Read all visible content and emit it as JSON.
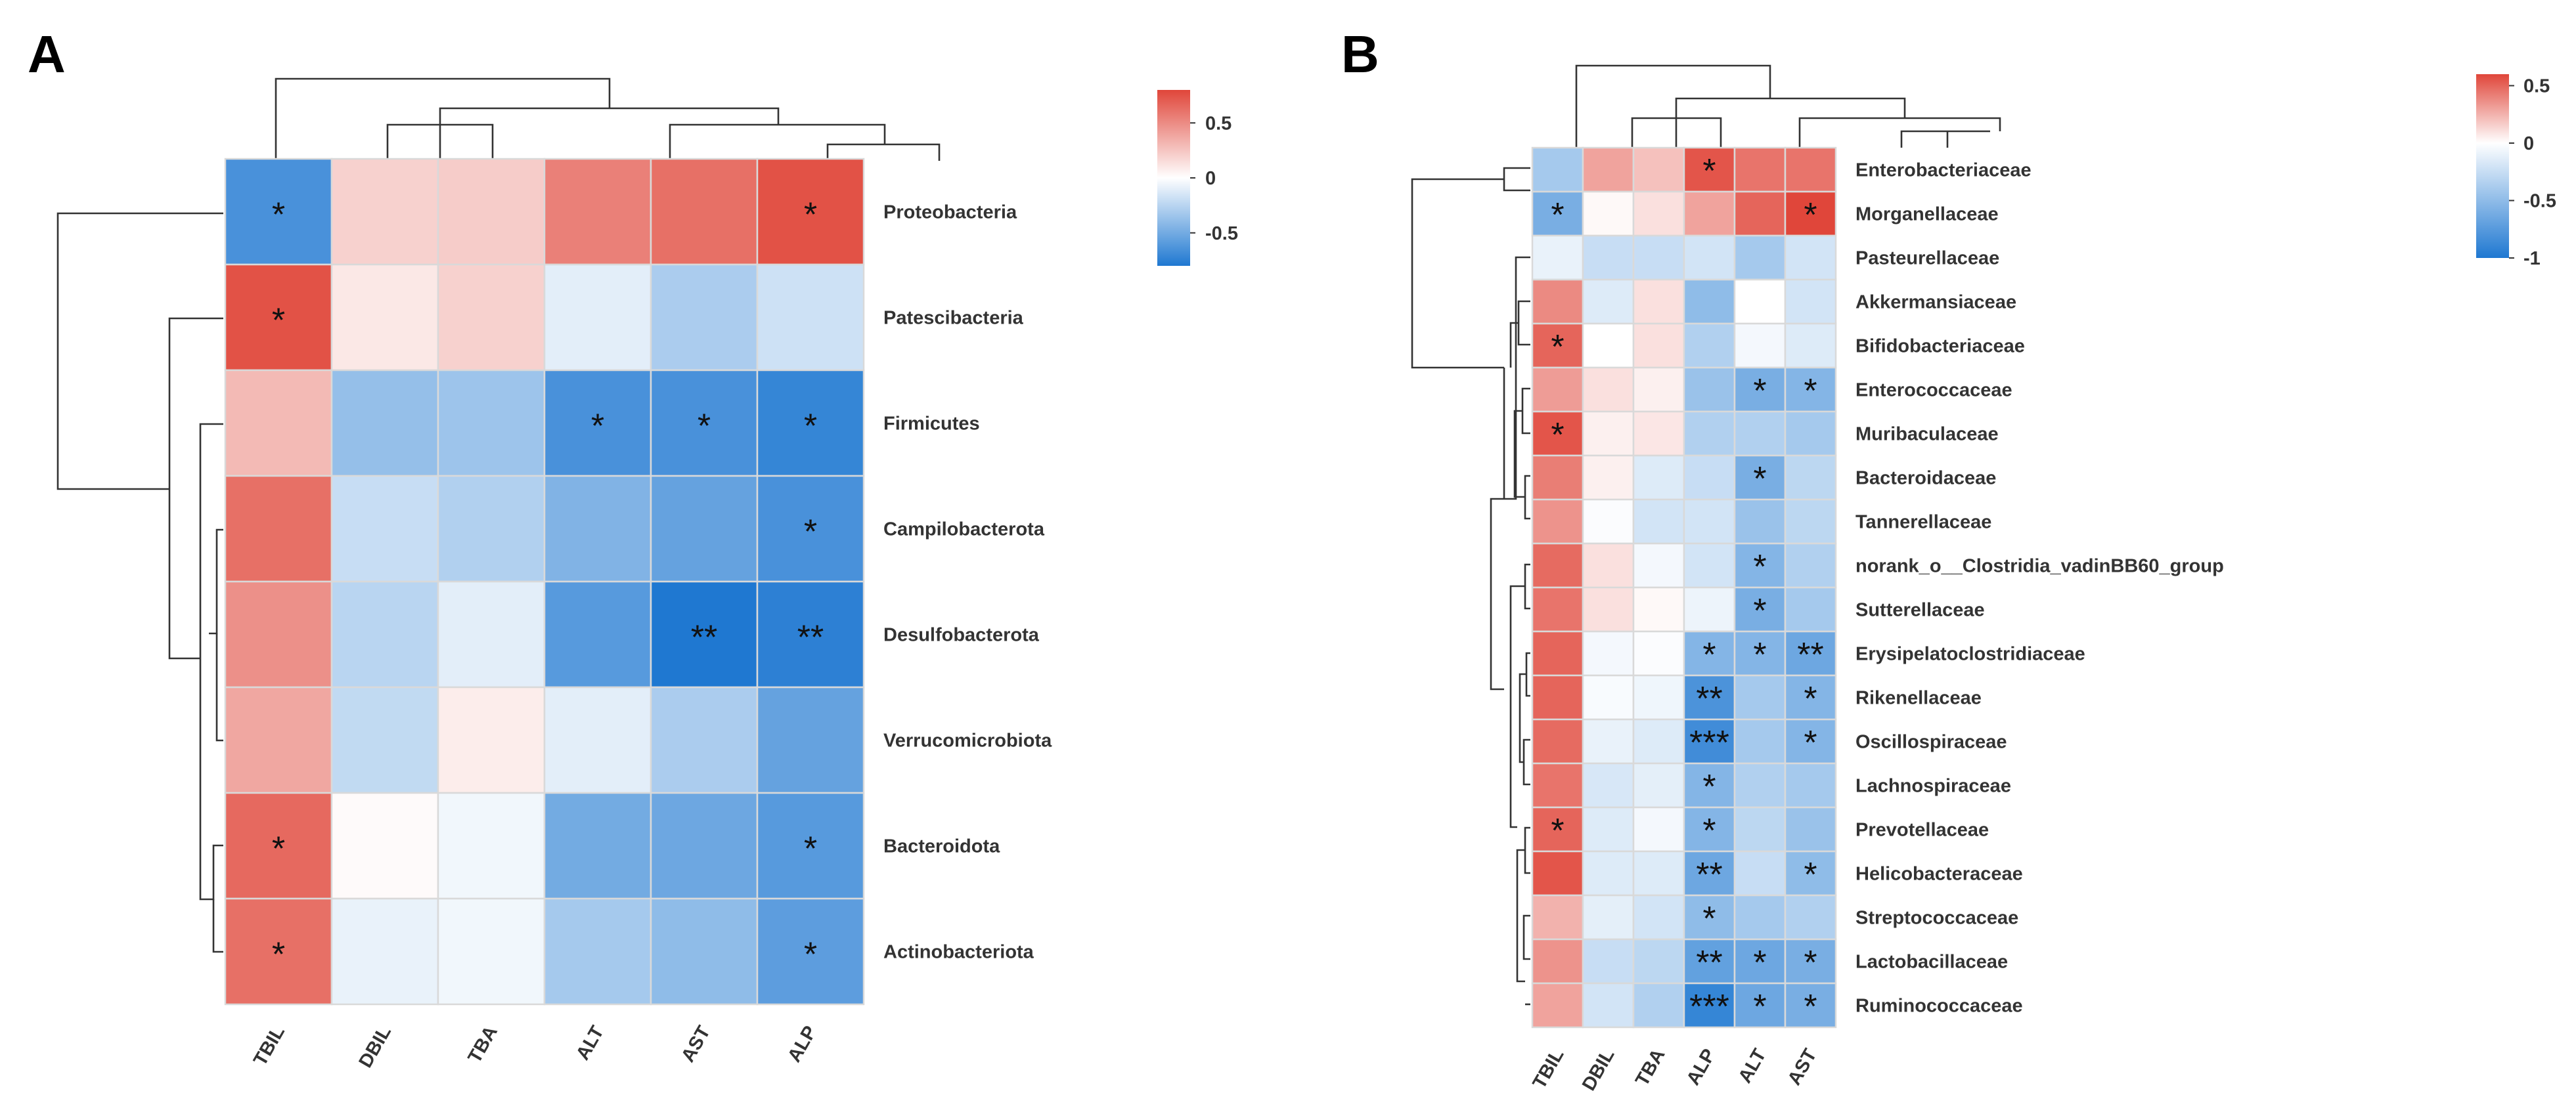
{
  "chart_data": [
    {
      "type": "heatmap",
      "panel_label": "A",
      "columns": [
        "TBIL",
        "DBIL",
        "TBA",
        "ALT",
        "AST",
        "ALP"
      ],
      "rows": [
        "Proteobacteria",
        "Patescibacteria",
        "Firmicutes",
        "Campilobacterota",
        "Desulfobacterota",
        "Verrucomicrobiota",
        "Bacteroidota",
        "Actinobacteriota"
      ],
      "values": [
        [
          -0.65,
          0.2,
          0.22,
          0.55,
          0.62,
          0.75
        ],
        [
          0.75,
          0.1,
          0.2,
          -0.1,
          -0.3,
          -0.18
        ],
        [
          0.3,
          -0.38,
          -0.35,
          -0.65,
          -0.65,
          -0.72
        ],
        [
          0.62,
          -0.2,
          -0.28,
          -0.45,
          -0.55,
          -0.65
        ],
        [
          0.48,
          -0.25,
          -0.1,
          -0.6,
          -0.8,
          -0.75
        ],
        [
          0.38,
          -0.22,
          0.08,
          -0.1,
          -0.3,
          -0.55
        ],
        [
          0.65,
          0.02,
          -0.05,
          -0.5,
          -0.52,
          -0.6
        ],
        [
          0.62,
          -0.08,
          -0.05,
          -0.32,
          -0.4,
          -0.58
        ]
      ],
      "significance": [
        [
          "*",
          "",
          "",
          "",
          "",
          "*"
        ],
        [
          "*",
          "",
          "",
          "",
          "",
          ""
        ],
        [
          "",
          "",
          "",
          "*",
          "*",
          "*"
        ],
        [
          "",
          "",
          "",
          "",
          "",
          "*"
        ],
        [
          "",
          "",
          "",
          "",
          "**",
          "**"
        ],
        [
          "",
          "",
          "",
          "",
          "",
          ""
        ],
        [
          "*",
          "",
          "",
          "",
          "",
          "*"
        ],
        [
          "*",
          "",
          "",
          "",
          "",
          "*"
        ]
      ],
      "colorbar": {
        "min": -0.8,
        "max": 0.8,
        "ticks": [
          0.5,
          0,
          -0.5
        ],
        "tick_labels": [
          "0.5",
          "0",
          "-0.5"
        ],
        "low_color": "#1f78d1",
        "mid_color": "#ffffff",
        "high_color": "#e0463a"
      }
    },
    {
      "type": "heatmap",
      "panel_label": "B",
      "columns": [
        "TBIL",
        "DBIL",
        "TBA",
        "ALP",
        "ALT",
        "AST"
      ],
      "rows": [
        "Enterobacteriaceae",
        "Morganellaceae",
        "Pasteurellaceae",
        "Akkermansiaceae",
        "Bifidobacteriaceae",
        "Enterococcaceae",
        "Muribaculaceae",
        "Bacteroidaceae",
        "Tannerellaceae",
        "norank_o__Clostridia_vadinBB60_group",
        "Sutterellaceae",
        "Erysipelatoclostridiaceae",
        "Rikenellaceae",
        "Oscillospiraceae",
        "Lachnospiraceae",
        "Prevotellaceae",
        "Helicobacteraceae",
        "Streptococcaceae",
        "Lactobacillaceae",
        "Ruminococcaceae"
      ],
      "values": [
        [
          -0.4,
          0.3,
          0.2,
          0.55,
          0.45,
          0.45
        ],
        [
          -0.6,
          0.02,
          0.1,
          0.3,
          0.5,
          0.6
        ],
        [
          -0.1,
          -0.25,
          -0.25,
          -0.2,
          -0.4,
          -0.2
        ],
        [
          0.38,
          -0.15,
          0.1,
          -0.5,
          0,
          -0.2
        ],
        [
          0.5,
          0,
          0.1,
          -0.35,
          -0.05,
          -0.15
        ],
        [
          0.32,
          0.1,
          0.05,
          -0.45,
          -0.6,
          -0.55
        ],
        [
          0.55,
          0.05,
          0.08,
          -0.35,
          -0.35,
          -0.4
        ],
        [
          0.42,
          0.05,
          -0.15,
          -0.25,
          -0.6,
          -0.3
        ],
        [
          0.35,
          -0.02,
          -0.2,
          -0.2,
          -0.45,
          -0.3
        ],
        [
          0.48,
          0.1,
          -0.05,
          -0.2,
          -0.55,
          -0.35
        ],
        [
          0.45,
          0.1,
          0.02,
          -0.08,
          -0.6,
          -0.4
        ],
        [
          0.5,
          -0.05,
          -0.02,
          -0.55,
          -0.55,
          -0.65
        ],
        [
          0.5,
          -0.03,
          -0.07,
          -0.8,
          -0.4,
          -0.55
        ],
        [
          0.48,
          -0.1,
          -0.15,
          -0.85,
          -0.4,
          -0.55
        ],
        [
          0.45,
          -0.18,
          -0.12,
          -0.55,
          -0.35,
          -0.4
        ],
        [
          0.5,
          -0.15,
          -0.05,
          -0.55,
          -0.3,
          -0.45
        ],
        [
          0.55,
          -0.15,
          -0.15,
          -0.65,
          -0.25,
          -0.5
        ],
        [
          0.25,
          -0.12,
          -0.2,
          -0.5,
          -0.4,
          -0.35
        ],
        [
          0.35,
          -0.25,
          -0.3,
          -0.7,
          -0.65,
          -0.6
        ],
        [
          0.3,
          -0.2,
          -0.35,
          -0.9,
          -0.65,
          -0.6
        ]
      ],
      "significance": [
        [
          "",
          "",
          "",
          "*",
          "",
          ""
        ],
        [
          "*",
          "",
          "",
          "",
          "",
          "*"
        ],
        [
          "",
          "",
          "",
          "",
          "",
          ""
        ],
        [
          "",
          "",
          "",
          "",
          "",
          ""
        ],
        [
          "*",
          "",
          "",
          "",
          "",
          ""
        ],
        [
          "",
          "",
          "",
          "",
          "*",
          "*"
        ],
        [
          "*",
          "",
          "",
          "",
          "",
          ""
        ],
        [
          "",
          "",
          "",
          "",
          "*",
          ""
        ],
        [
          "",
          "",
          "",
          "",
          "",
          ""
        ],
        [
          "",
          "",
          "",
          "",
          "*",
          ""
        ],
        [
          "",
          "",
          "",
          "",
          "*",
          ""
        ],
        [
          "",
          "",
          "",
          "*",
          "*",
          "**"
        ],
        [
          "",
          "",
          "",
          "**",
          "",
          "*"
        ],
        [
          "",
          "",
          "",
          "***",
          "",
          "*"
        ],
        [
          "",
          "",
          "",
          "*",
          "",
          ""
        ],
        [
          "*",
          "",
          "",
          "*",
          "",
          ""
        ],
        [
          "",
          "",
          "",
          "**",
          "",
          "*"
        ],
        [
          "",
          "",
          "",
          "*",
          "",
          ""
        ],
        [
          "",
          "",
          "",
          "**",
          "*",
          "*"
        ],
        [
          "",
          "",
          "",
          "***",
          "*",
          "*"
        ]
      ],
      "colorbar": {
        "min": -1,
        "max": 0.6,
        "ticks": [
          0.5,
          0,
          -0.5,
          -1
        ],
        "tick_labels": [
          "0.5",
          "0",
          "-0.5",
          "-1"
        ],
        "low_color": "#1f78d1",
        "mid_color": "#ffffff",
        "high_color": "#e0463a"
      }
    }
  ]
}
